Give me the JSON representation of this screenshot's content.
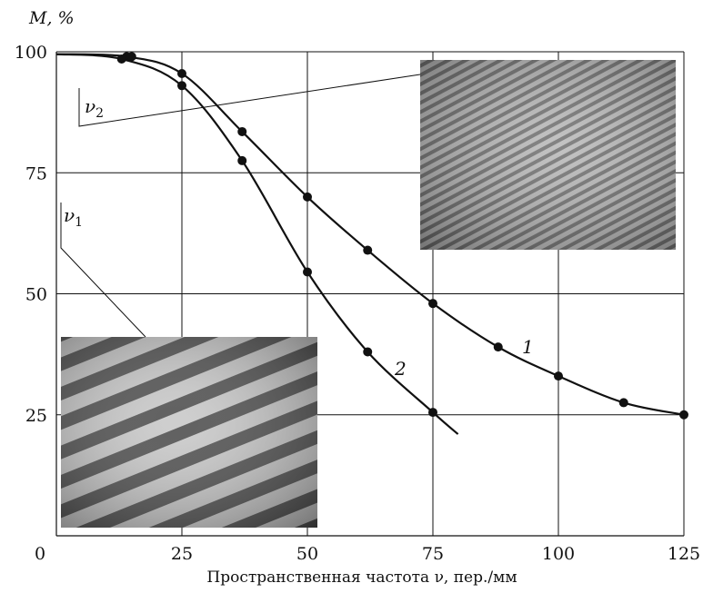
{
  "chart_data": {
    "type": "line",
    "title": "",
    "ylabel": "M, %",
    "xlabel": "Пространственная частота ν, пер./мм",
    "xlim": [
      0,
      125
    ],
    "ylim": [
      0,
      100
    ],
    "x_ticks": [
      "0",
      "25",
      "50",
      "75",
      "100",
      "125"
    ],
    "y_ticks": [
      "25",
      "50",
      "75",
      "100"
    ],
    "grid": true,
    "series": [
      {
        "name": "1",
        "x": [
          0,
          14,
          25,
          37,
          50,
          62,
          75,
          88,
          100,
          113,
          125
        ],
        "y": [
          99.5,
          99,
          95.5,
          83.5,
          70,
          59,
          48,
          39,
          33,
          27.5,
          25
        ]
      },
      {
        "name": "2",
        "x": [
          0,
          13,
          15,
          25,
          37,
          50,
          62,
          75,
          80
        ],
        "y": [
          99.5,
          98.5,
          99,
          93,
          77.5,
          54.5,
          38,
          25.5,
          21
        ]
      }
    ],
    "annotations": [
      {
        "text": "ν",
        "sub": "2"
      },
      {
        "text": "ν",
        "sub": "1"
      }
    ],
    "insets": [
      {
        "name": "high-frequency fringe image",
        "stripe_color": "#7a7a7a"
      },
      {
        "name": "low-frequency fringe image",
        "stripe_color": "#5a5a5a"
      }
    ]
  }
}
